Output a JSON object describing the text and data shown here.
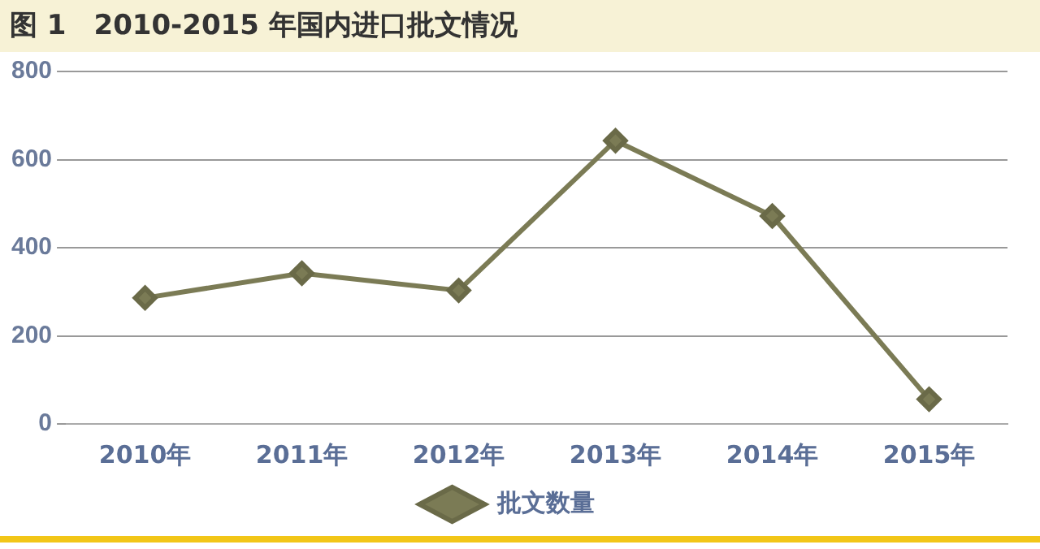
{
  "chart_data": {
    "type": "line",
    "title": "图 1　2010-2015 年国内进口批文情况",
    "categories": [
      "2010年",
      "2011年",
      "2012年",
      "2013年",
      "2014年",
      "2015年"
    ],
    "series": [
      {
        "name": "批文数量",
        "color": "#7b7b55",
        "values": [
          286,
          342,
          303,
          643,
          472,
          56
        ]
      }
    ],
    "ylim": [
      0,
      800
    ],
    "yticks": [
      0,
      200,
      400,
      600,
      800
    ],
    "grid": "y",
    "legend": "bottom",
    "marker": "diamond",
    "line_style": "solid"
  }
}
